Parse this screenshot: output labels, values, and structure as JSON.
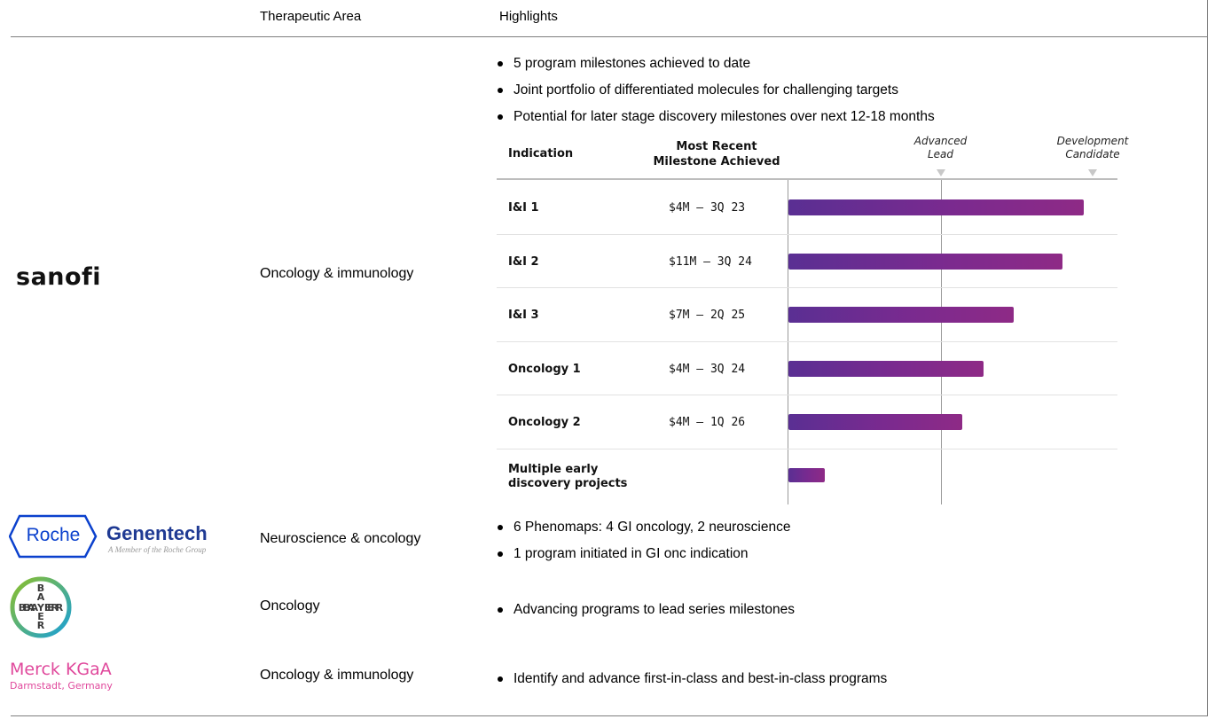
{
  "header": {
    "col_area": "Therapeutic Area",
    "col_highlights": "Highlights"
  },
  "partners": {
    "sanofi": {
      "logo_text": "sanofi",
      "area": "Oncology & immunology",
      "highlights": [
        "5 program milestones achieved to date",
        "Joint portfolio of differentiated molecules for challenging targets",
        "Potential for later stage discovery milestones over next 12-18 months"
      ]
    },
    "roche_genentech": {
      "logo_roche": "Roche",
      "logo_genentech": "Genentech",
      "logo_tagline": "A Member of the Roche Group",
      "area": "Neuroscience & oncology",
      "highlights": [
        "6 Phenomaps: 4 GI oncology, 2 neuroscience",
        "1 program initiated in GI onc indication"
      ]
    },
    "bayer": {
      "logo_text": "BAYER",
      "area": "Oncology",
      "highlights": [
        "Advancing programs to lead series milestones"
      ]
    },
    "merck": {
      "logo_name": "Merck KGaA",
      "logo_place": "Darmstadt, Germany",
      "area": "Oncology & immunology",
      "highlights": [
        "Identify and advance first-in-class and best-in-class programs"
      ]
    }
  },
  "chart_data": {
    "type": "bar",
    "orientation": "horizontal",
    "title": "",
    "col_indication": "Indication",
    "col_milestone_line1": "Most Recent",
    "col_milestone_line2": "Milestone Achieved",
    "stages": [
      {
        "line1": "Advanced",
        "line2": "Lead",
        "value": 1.0
      },
      {
        "line1": "Development",
        "line2": "Candidate",
        "value": 2.0
      }
    ],
    "xlim": [
      0,
      2.0
    ],
    "rows": [
      {
        "indication": "I&I 1",
        "milestone": "$4M – 3Q 23",
        "progress": 1.94
      },
      {
        "indication": "I&I 2",
        "milestone": "$11M – 3Q 24",
        "progress": 1.8
      },
      {
        "indication": "I&I 3",
        "milestone": "$7M – 2Q 25",
        "progress": 1.48
      },
      {
        "indication": "Oncology 1",
        "milestone": "$4M – 3Q 24",
        "progress": 1.28
      },
      {
        "indication": "Oncology 2",
        "milestone": "$4M – 1Q 26",
        "progress": 1.14
      },
      {
        "indication": "Multiple early discovery projects",
        "milestone": "",
        "progress": 0.24
      }
    ],
    "colors": {
      "bar_start": "#5a2f93",
      "bar_end": "#8e2a86"
    }
  }
}
